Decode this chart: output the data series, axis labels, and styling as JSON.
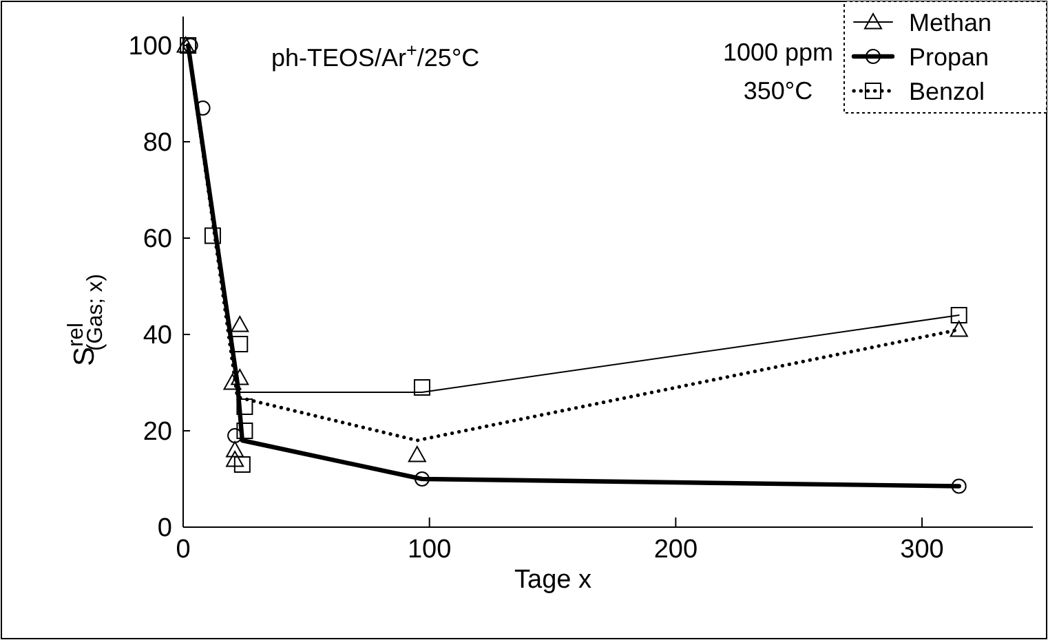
{
  "chart_data": {
    "type": "scatter",
    "xlabel": "Tage x",
    "ylabel": "S$^{rel}$$_{(Gas; x)}$",
    "xlim": [
      0,
      345
    ],
    "xticks": [
      0,
      100,
      200,
      300
    ],
    "ylim": [
      0,
      106
    ],
    "yticks": [
      0,
      20,
      40,
      60,
      80,
      100
    ],
    "grid": false,
    "legend": "top right",
    "annotations": [
      "ph-TEOS/Ar$^{+}$/25°C",
      "1000 ppm",
      "350°C"
    ],
    "series": [
      {
        "name": "Methan",
        "color": "#000000",
        "marker": "triangle",
        "line_style": "solid",
        "x": [
          1,
          23,
          23,
          20,
          21,
          21,
          95,
          315
        ],
        "values": [
          100,
          42,
          31,
          30,
          16,
          14,
          15,
          41
        ]
      },
      {
        "name": "Propan",
        "color": "#000000",
        "marker": "circle",
        "line_style": "solid",
        "x": [
          3,
          8,
          21,
          97,
          315
        ],
        "values": [
          100,
          87,
          19,
          10,
          8.5
        ]
      },
      {
        "name": "Benzol",
        "color": "#000000",
        "marker": "square",
        "line_style": "dotted",
        "x": [
          2,
          12,
          23,
          25,
          25,
          24,
          97,
          315
        ],
        "values": [
          100,
          60.5,
          38,
          25,
          20,
          13,
          29,
          44
        ]
      },
      {
        "type": "line",
        "color": "#000000",
        "marker": "none",
        "line_style": "solid",
        "x": [
          2,
          23,
          97,
          315
        ],
        "values": [
          100,
          28,
          28,
          44
        ]
      },
      {
        "type": "line",
        "color": "#000000",
        "marker": "none",
        "line_style": "solid",
        "x": [
          2,
          22,
          24,
          97,
          315
        ],
        "values": [
          100,
          30,
          18,
          10,
          8.5
        ]
      },
      {
        "type": "line",
        "color": "#000000",
        "marker": "none",
        "line_style": "dotted",
        "x": [
          2,
          22,
          95,
          315
        ],
        "values": [
          100,
          27,
          18,
          41
        ]
      }
    ]
  }
}
